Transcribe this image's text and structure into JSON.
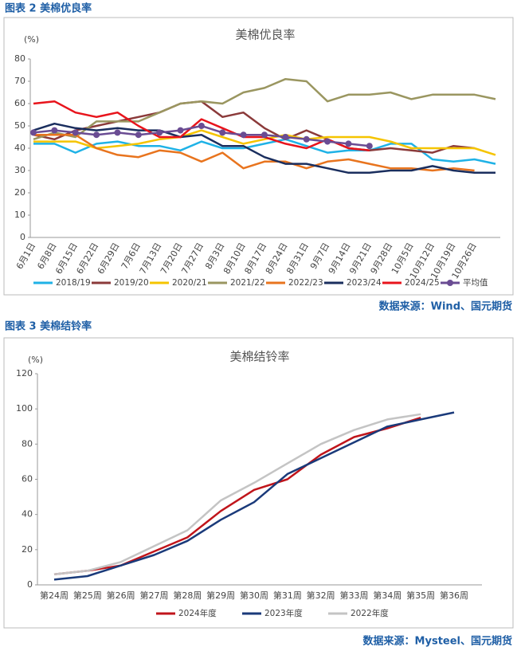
{
  "chart_data": [
    {
      "type": "line",
      "caption": "图表 2 美棉优良率",
      "title": "美棉优良率",
      "y_unit": "(%)",
      "source": "数据来源：Wind、国元期货",
      "categories": [
        "6月1日",
        "6月8日",
        "6月15日",
        "6月22日",
        "6月29日",
        "7月6日",
        "7月13日",
        "7月20日",
        "7月27日",
        "8月3日",
        "8月10日",
        "8月17日",
        "8月24日",
        "8月31日",
        "9月7日",
        "9月14日",
        "9月21日",
        "9月28日",
        "10月5日",
        "10月12日",
        "10月19日",
        "10月26日",
        null
      ],
      "ylim": [
        0,
        80
      ],
      "yticks": [
        0,
        10,
        20,
        30,
        40,
        50,
        60,
        70,
        80
      ],
      "grid": false,
      "legend": "bottom",
      "series": [
        {
          "name": "2018/19",
          "color": "#1fb2e6",
          "values": [
            42,
            42,
            38,
            42,
            43,
            41,
            41,
            39,
            43,
            40,
            40,
            42,
            44,
            41,
            38,
            39,
            39,
            42,
            42,
            35,
            34,
            35,
            33
          ]
        },
        {
          "name": "2019/20",
          "color": "#8b3a3a",
          "values": [
            46,
            44,
            48,
            50,
            52,
            54,
            56,
            60,
            61,
            54,
            56,
            49,
            44,
            48,
            44,
            40,
            39,
            40,
            39,
            38,
            41,
            40,
            null
          ]
        },
        {
          "name": "2020/21",
          "color": "#f5c400",
          "values": [
            43,
            43,
            43,
            40,
            41,
            42,
            44,
            45,
            48,
            45,
            42,
            44,
            46,
            44,
            45,
            45,
            45,
            43,
            40,
            40,
            40,
            40,
            37
          ]
        },
        {
          "name": "2021/22",
          "color": "#9a9660",
          "values": [
            44,
            47,
            45,
            52,
            52,
            52,
            56,
            60,
            61,
            60,
            65,
            67,
            71,
            70,
            61,
            64,
            64,
            65,
            62,
            64,
            64,
            64,
            62
          ]
        },
        {
          "name": "2022/23",
          "color": "#e8741e",
          "values": [
            46,
            46,
            46,
            40,
            37,
            36,
            39,
            38,
            34,
            38,
            31,
            34,
            34,
            31,
            34,
            35,
            33,
            31,
            31,
            30,
            31,
            30,
            null
          ]
        },
        {
          "name": "2023/24",
          "color": "#1a2e5e",
          "values": [
            48,
            51,
            49,
            48,
            49,
            48,
            48,
            45,
            46,
            41,
            41,
            36,
            33,
            33,
            31,
            29,
            29,
            30,
            30,
            32,
            30,
            29,
            29
          ]
        },
        {
          "name": "2024/25",
          "color": "#e8141c",
          "values": [
            60,
            61,
            56,
            54,
            56,
            50,
            45,
            45,
            53,
            49,
            45,
            45,
            42,
            40,
            44,
            40,
            39,
            null,
            null,
            null,
            null,
            null,
            null
          ]
        },
        {
          "name": "平均值",
          "color": "#6a4c93",
          "marker": "circle",
          "values": [
            47,
            48,
            47,
            46,
            47,
            46,
            47,
            48,
            50,
            47,
            46,
            46,
            45,
            44,
            43,
            42,
            41,
            null,
            null,
            null,
            null,
            null,
            null
          ]
        }
      ]
    },
    {
      "type": "line",
      "caption": "图表 3 美棉结铃率",
      "title": "美棉结铃率",
      "y_unit": "(%)",
      "source": "数据来源：Mysteel、国元期货",
      "categories": [
        "第24周",
        "第25周",
        "第26周",
        "第27周",
        "第28周",
        "第29周",
        "第30周",
        "第31周",
        "第32周",
        "第33周",
        "第34周",
        "第35周",
        "第36周"
      ],
      "ylim": [
        0,
        120
      ],
      "yticks": [
        0,
        20,
        40,
        60,
        80,
        100,
        120
      ],
      "grid": false,
      "legend": "bottom",
      "series": [
        {
          "name": "2024年度",
          "color": "#c0151b",
          "values": [
            6,
            8,
            11,
            19,
            27,
            42,
            54,
            60,
            74,
            84,
            89,
            95,
            null
          ]
        },
        {
          "name": "2023年度",
          "color": "#1a3a7a",
          "values": [
            3,
            5,
            11,
            17,
            25,
            37,
            47,
            63,
            72,
            81,
            90,
            94,
            98
          ]
        },
        {
          "name": "2022年度",
          "color": "#c4c4c4",
          "values": [
            6,
            8,
            13,
            22,
            31,
            48,
            58,
            69,
            80,
            88,
            94,
            97,
            null
          ]
        }
      ]
    }
  ]
}
